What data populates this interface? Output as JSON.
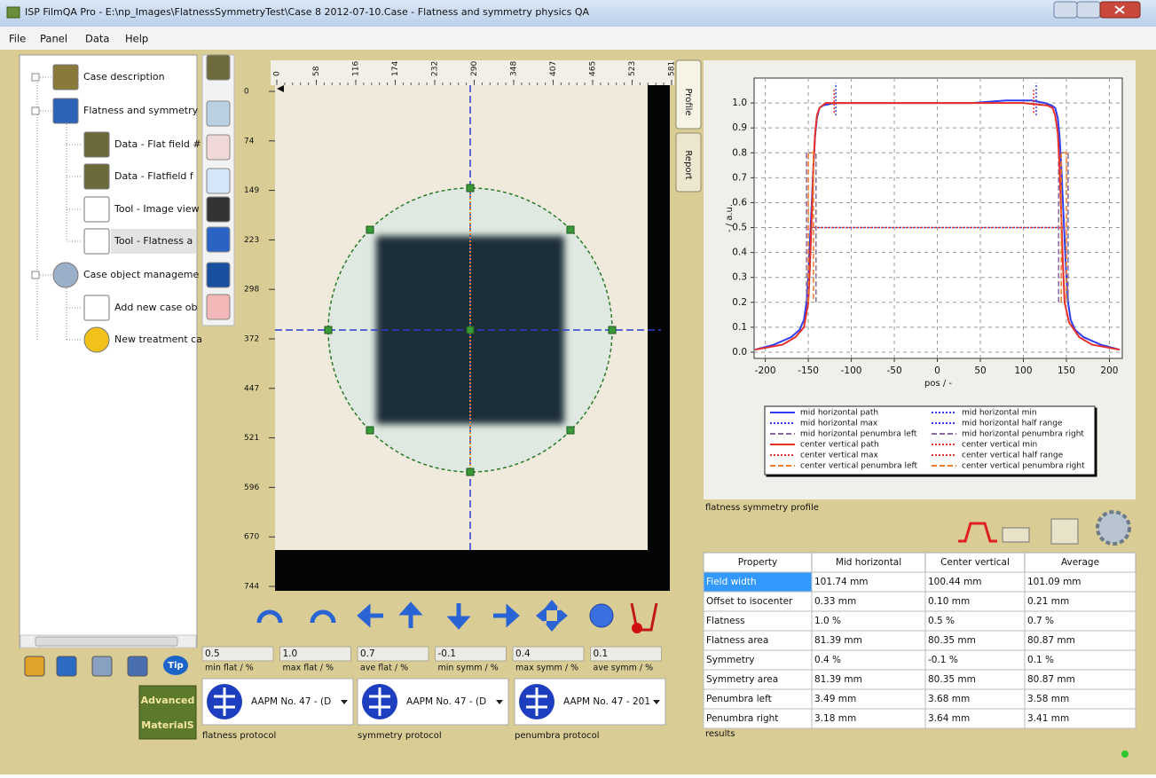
{
  "window": {
    "title": "ISP FilmQA Pro - E:\\np_Images\\FlatnessSymmetryTest\\Case 8 2012-07-10.Case - Flatness and symmetry physics QA",
    "menu": [
      "File",
      "Panel",
      "Data",
      "Help"
    ]
  },
  "tree": [
    "Case description",
    "Flatness and symmetry",
    "Data - Flat field #",
    "Data - Flatfield f",
    "Tool - Image view",
    "Tool - Flatness a",
    "Case object manageme",
    "Add new case ob",
    "New treatment ca"
  ],
  "toolbar": {
    "tip": "Tip",
    "logo": [
      "Advanced",
      "MaterialS"
    ]
  },
  "viewer": {
    "top_ruler": [
      0,
      58,
      116,
      174,
      232,
      290,
      348,
      407,
      465,
      523,
      581
    ],
    "left_ruler": [
      0,
      74,
      149,
      223,
      298,
      372,
      447,
      521,
      596,
      670,
      744
    ]
  },
  "stats": [
    {
      "value": "0.5",
      "label": "min flat / %"
    },
    {
      "value": "1.0",
      "label": "max flat / %"
    },
    {
      "value": "0.7",
      "label": "ave flat / %"
    },
    {
      "value": "-0.1",
      "label": "min symm / %"
    },
    {
      "value": "0.4",
      "label": "max symm / %"
    },
    {
      "value": "0.1",
      "label": "ave symm / %"
    }
  ],
  "protocols": [
    {
      "name": "AAPM No. 47 - (D",
      "label": "flatness protocol"
    },
    {
      "name": "AAPM No. 47 - (D",
      "label": "symmetry protocol"
    },
    {
      "name": "AAPM No. 47 - 201",
      "label": "penumbra protocol"
    }
  ],
  "tabs": [
    "Profile",
    "Report"
  ],
  "profile_chart": {
    "type": "line",
    "caption": "flatness symmetry profile",
    "xlabel": "pos / -",
    "ylabel": "- / a.u.",
    "grid": true,
    "xlim": [
      -213,
      215
    ],
    "ylim": [
      -0.025,
      1.1
    ],
    "xticks": [
      -200,
      -150,
      -100,
      -50,
      0,
      50,
      100,
      150,
      200
    ],
    "yticks": [
      {
        "value": 0,
        "label": "0.0"
      },
      0.1,
      0.2,
      0.3,
      0.4,
      0.5,
      0.6,
      0.7,
      0.8,
      0.9,
      {
        "value": 1,
        "label": "1.0"
      }
    ],
    "series": [
      {
        "name": "mid horizontal path",
        "color": "#2f3cf0",
        "dash": "solid",
        "x": [
          -212,
          -190,
          -170,
          -160,
          -155,
          -152,
          -150,
          -148,
          -146,
          -144,
          -142,
          -140,
          -137,
          -133,
          -120,
          -80,
          -40,
          0,
          40,
          80,
          110,
          125,
          133,
          137,
          140,
          142,
          144,
          146,
          148,
          150,
          152,
          155,
          160,
          170,
          190,
          212
        ],
        "values": [
          0.01,
          0.03,
          0.06,
          0.09,
          0.13,
          0.2,
          0.3,
          0.45,
          0.6,
          0.75,
          0.87,
          0.94,
          0.98,
          0.99,
          1.0,
          1.0,
          1.0,
          1.0,
          1.0,
          1.01,
          1.01,
          1.0,
          0.99,
          0.98,
          0.94,
          0.87,
          0.75,
          0.6,
          0.45,
          0.3,
          0.2,
          0.13,
          0.09,
          0.06,
          0.03,
          0.01
        ]
      },
      {
        "name": "mid horizontal min",
        "color": "#2f3cf0",
        "dash": "dotted",
        "x": [
          -118,
          -118
        ],
        "values": [
          0.95,
          1.08
        ]
      },
      {
        "name": "mid horizontal max",
        "color": "#2f3cf0",
        "dash": "dotted",
        "x": [
          115,
          115
        ],
        "values": [
          0.95,
          1.08
        ]
      },
      {
        "name": "mid horizontal half range",
        "color": "#2f3cf0",
        "dash": "dotted",
        "x": [
          -147,
          146
        ],
        "values": [
          0.5,
          0.5
        ]
      },
      {
        "name": "mid horizontal penumbra left",
        "color": "#8a6a9a",
        "dash": "dashed",
        "x": [
          -152,
          -152,
          -141,
          -141
        ],
        "values": [
          0.2,
          0.8,
          0.8,
          0.2
        ]
      },
      {
        "name": "mid horizontal penumbra right",
        "color": "#8a6a9a",
        "dash": "dashed",
        "x": [
          141,
          141,
          152,
          152
        ],
        "values": [
          0.2,
          0.8,
          0.8,
          0.2
        ]
      },
      {
        "name": "center vertical path",
        "color": "#e8302a",
        "dash": "solid",
        "x": [
          -212,
          -180,
          -165,
          -155,
          -150,
          -148,
          -146,
          -144,
          -142,
          -140,
          -137,
          -130,
          -100,
          -50,
          0,
          50,
          100,
          128,
          134,
          137,
          140,
          142,
          144,
          146,
          148,
          153,
          165,
          180,
          212
        ],
        "values": [
          0.01,
          0.03,
          0.06,
          0.1,
          0.2,
          0.35,
          0.55,
          0.75,
          0.88,
          0.95,
          0.98,
          1.0,
          1.0,
          1.0,
          1.0,
          1.0,
          1.0,
          0.99,
          0.98,
          0.95,
          0.88,
          0.75,
          0.55,
          0.35,
          0.2,
          0.12,
          0.06,
          0.03,
          0.01
        ]
      },
      {
        "name": "center vertical min",
        "color": "#e8302a",
        "dash": "dotted",
        "x": [
          -120,
          -120
        ],
        "values": [
          0.96,
          1.06
        ]
      },
      {
        "name": "center vertical max",
        "color": "#e8302a",
        "dash": "dotted",
        "x": [
          112,
          112
        ],
        "values": [
          0.96,
          1.06
        ]
      },
      {
        "name": "center vertical half range",
        "color": "#e8302a",
        "dash": "dotted",
        "x": [
          -148,
          148
        ],
        "values": [
          0.5,
          0.5
        ]
      },
      {
        "name": "center vertical penumbra left",
        "color": "#f07a28",
        "dash": "dashed",
        "x": [
          -150,
          -150,
          -144,
          -144
        ],
        "values": [
          0.2,
          0.8,
          0.8,
          0.2
        ]
      },
      {
        "name": "center vertical penumbra right",
        "color": "#f07a28",
        "dash": "dashed",
        "x": [
          144,
          144,
          150,
          150
        ],
        "values": [
          0.2,
          0.8,
          0.8,
          0.2
        ]
      }
    ]
  },
  "table": {
    "header": [
      "Property",
      "Mid horizontal",
      "Center vertical",
      "Average"
    ],
    "rows": [
      [
        "Field width",
        "101.74 mm",
        "100.44 mm",
        "101.09 mm"
      ],
      [
        "Offset to isocenter",
        "0.33 mm",
        "0.10 mm",
        "0.21 mm"
      ],
      [
        "Flatness",
        "1.0 %",
        "0.5 %",
        "0.7 %"
      ],
      [
        "Flatness area",
        "81.39 mm",
        "80.35 mm",
        "80.87 mm"
      ],
      [
        "Symmetry",
        "0.4 %",
        "-0.1 %",
        "0.1 %"
      ],
      [
        "Symmetry area",
        "81.39 mm",
        "80.35 mm",
        "80.87 mm"
      ],
      [
        "Penumbra left",
        "3.49 mm",
        "3.68 mm",
        "3.58 mm"
      ],
      [
        "Penumbra right",
        "3.18 mm",
        "3.64 mm",
        "3.41 mm"
      ]
    ],
    "caption": "results"
  }
}
